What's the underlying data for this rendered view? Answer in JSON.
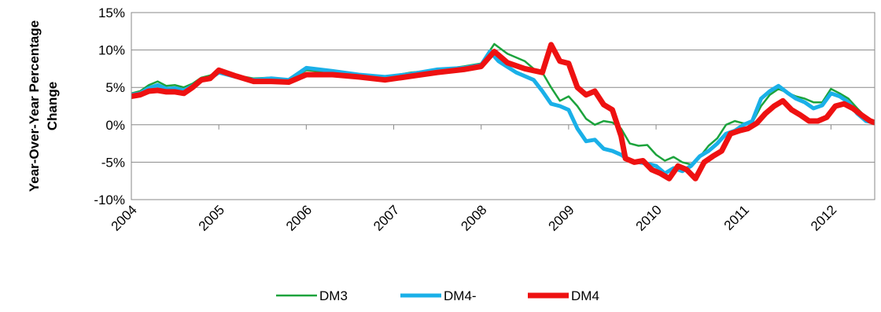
{
  "chart_data": {
    "type": "line",
    "ylabel": [
      "Year-Over-Year Percentage",
      "Change"
    ],
    "xlabel": "",
    "ylim": [
      -10,
      15
    ],
    "yticks": [
      15,
      10,
      5,
      0,
      -5,
      -10
    ],
    "ytick_labels": [
      "15%",
      "10%",
      "5%",
      "0%",
      "-5%",
      "-10%"
    ],
    "xlim": [
      2004,
      2012.5
    ],
    "xticks": [
      2004,
      2005,
      2006,
      2007,
      2008,
      2009,
      2010,
      2011,
      2012
    ],
    "xtick_labels": [
      "2004",
      "2005",
      "2006",
      "2007",
      "2008",
      "2009",
      "2010",
      "2011",
      "2012"
    ],
    "grid": "horizontal",
    "legend": "bottom",
    "series": [
      {
        "name": "DM3",
        "color": "#1ca33c",
        "points": [
          [
            2004.0,
            4.2
          ],
          [
            2004.1,
            4.5
          ],
          [
            2004.2,
            5.3
          ],
          [
            2004.3,
            5.8
          ],
          [
            2004.4,
            5.2
          ],
          [
            2004.5,
            5.3
          ],
          [
            2004.6,
            5.0
          ],
          [
            2004.7,
            5.5
          ],
          [
            2004.8,
            6.3
          ],
          [
            2004.9,
            6.6
          ],
          [
            2005.0,
            7.2
          ],
          [
            2005.2,
            6.6
          ],
          [
            2005.4,
            6.2
          ],
          [
            2005.6,
            6.3
          ],
          [
            2005.8,
            6.0
          ],
          [
            2006.0,
            7.3
          ],
          [
            2006.3,
            7.0
          ],
          [
            2006.6,
            6.6
          ],
          [
            2006.9,
            6.4
          ],
          [
            2007.2,
            7.0
          ],
          [
            2007.5,
            7.3
          ],
          [
            2007.8,
            7.8
          ],
          [
            2008.0,
            8.2
          ],
          [
            2008.15,
            10.8
          ],
          [
            2008.3,
            9.5
          ],
          [
            2008.5,
            8.5
          ],
          [
            2008.6,
            7.5
          ],
          [
            2008.7,
            7.0
          ],
          [
            2008.8,
            5.0
          ],
          [
            2008.9,
            3.2
          ],
          [
            2009.0,
            3.8
          ],
          [
            2009.1,
            2.5
          ],
          [
            2009.2,
            0.8
          ],
          [
            2009.3,
            0.0
          ],
          [
            2009.4,
            0.5
          ],
          [
            2009.5,
            0.3
          ],
          [
            2009.6,
            -0.5
          ],
          [
            2009.7,
            -2.5
          ],
          [
            2009.8,
            -2.8
          ],
          [
            2009.9,
            -2.7
          ],
          [
            2010.0,
            -4.0
          ],
          [
            2010.1,
            -4.8
          ],
          [
            2010.2,
            -4.3
          ],
          [
            2010.3,
            -5.0
          ],
          [
            2010.4,
            -5.3
          ],
          [
            2010.5,
            -4.3
          ],
          [
            2010.6,
            -2.8
          ],
          [
            2010.7,
            -1.8
          ],
          [
            2010.8,
            0.0
          ],
          [
            2010.9,
            0.5
          ],
          [
            2011.0,
            0.2
          ],
          [
            2011.1,
            0.3
          ],
          [
            2011.2,
            2.5
          ],
          [
            2011.3,
            4.0
          ],
          [
            2011.4,
            4.8
          ],
          [
            2011.5,
            4.3
          ],
          [
            2011.6,
            3.8
          ],
          [
            2011.7,
            3.5
          ],
          [
            2011.8,
            3.0
          ],
          [
            2011.9,
            3.0
          ],
          [
            2012.0,
            4.8
          ],
          [
            2012.1,
            4.2
          ],
          [
            2012.2,
            3.5
          ],
          [
            2012.3,
            2.2
          ],
          [
            2012.4,
            1.0
          ],
          [
            2012.5,
            0.5
          ]
        ]
      },
      {
        "name": "DM4-",
        "color": "#1ab0e8",
        "points": [
          [
            2004.0,
            4.0
          ],
          [
            2004.1,
            4.2
          ],
          [
            2004.2,
            4.9
          ],
          [
            2004.3,
            5.3
          ],
          [
            2004.4,
            4.8
          ],
          [
            2004.5,
            4.9
          ],
          [
            2004.6,
            4.6
          ],
          [
            2004.7,
            5.2
          ],
          [
            2004.8,
            6.0
          ],
          [
            2004.9,
            6.2
          ],
          [
            2005.0,
            7.0
          ],
          [
            2005.2,
            6.4
          ],
          [
            2005.4,
            6.0
          ],
          [
            2005.6,
            6.2
          ],
          [
            2005.8,
            6.0
          ],
          [
            2006.0,
            7.6
          ],
          [
            2006.3,
            7.2
          ],
          [
            2006.6,
            6.7
          ],
          [
            2006.9,
            6.4
          ],
          [
            2007.2,
            6.8
          ],
          [
            2007.5,
            7.4
          ],
          [
            2007.8,
            7.6
          ],
          [
            2008.0,
            8.0
          ],
          [
            2008.1,
            9.8
          ],
          [
            2008.2,
            8.5
          ],
          [
            2008.4,
            7.0
          ],
          [
            2008.6,
            6.0
          ],
          [
            2008.7,
            4.5
          ],
          [
            2008.8,
            2.8
          ],
          [
            2008.9,
            2.5
          ],
          [
            2009.0,
            2.0
          ],
          [
            2009.1,
            -0.5
          ],
          [
            2009.2,
            -2.2
          ],
          [
            2009.3,
            -2.0
          ],
          [
            2009.4,
            -3.2
          ],
          [
            2009.5,
            -3.5
          ],
          [
            2009.6,
            -4.0
          ],
          [
            2009.7,
            -4.8
          ],
          [
            2009.8,
            -5.0
          ],
          [
            2009.9,
            -5.2
          ],
          [
            2010.0,
            -5.5
          ],
          [
            2010.1,
            -6.5
          ],
          [
            2010.2,
            -5.8
          ],
          [
            2010.3,
            -6.2
          ],
          [
            2010.4,
            -5.5
          ],
          [
            2010.5,
            -4.2
          ],
          [
            2010.6,
            -3.5
          ],
          [
            2010.7,
            -2.5
          ],
          [
            2010.8,
            -1.2
          ],
          [
            2010.9,
            -0.8
          ],
          [
            2011.0,
            0.0
          ],
          [
            2011.1,
            0.5
          ],
          [
            2011.2,
            3.5
          ],
          [
            2011.3,
            4.5
          ],
          [
            2011.4,
            5.2
          ],
          [
            2011.5,
            4.3
          ],
          [
            2011.6,
            3.5
          ],
          [
            2011.7,
            3.0
          ],
          [
            2011.8,
            2.2
          ],
          [
            2011.9,
            2.6
          ],
          [
            2012.0,
            4.2
          ],
          [
            2012.1,
            3.8
          ],
          [
            2012.2,
            3.0
          ],
          [
            2012.3,
            1.5
          ],
          [
            2012.4,
            0.5
          ],
          [
            2012.5,
            0.3
          ]
        ]
      },
      {
        "name": "DM4",
        "color": "#ee1111",
        "points": [
          [
            2004.0,
            3.8
          ],
          [
            2004.1,
            4.0
          ],
          [
            2004.2,
            4.5
          ],
          [
            2004.3,
            4.6
          ],
          [
            2004.4,
            4.4
          ],
          [
            2004.5,
            4.4
          ],
          [
            2004.6,
            4.2
          ],
          [
            2004.7,
            5.0
          ],
          [
            2004.8,
            6.0
          ],
          [
            2004.9,
            6.2
          ],
          [
            2005.0,
            7.3
          ],
          [
            2005.2,
            6.5
          ],
          [
            2005.4,
            5.8
          ],
          [
            2005.6,
            5.8
          ],
          [
            2005.8,
            5.7
          ],
          [
            2006.0,
            6.7
          ],
          [
            2006.3,
            6.7
          ],
          [
            2006.6,
            6.4
          ],
          [
            2006.9,
            6.0
          ],
          [
            2007.2,
            6.5
          ],
          [
            2007.5,
            7.0
          ],
          [
            2007.8,
            7.4
          ],
          [
            2008.0,
            7.8
          ],
          [
            2008.15,
            9.8
          ],
          [
            2008.3,
            8.3
          ],
          [
            2008.5,
            7.5
          ],
          [
            2008.7,
            7.0
          ],
          [
            2008.8,
            10.7
          ],
          [
            2008.9,
            8.5
          ],
          [
            2009.0,
            8.2
          ],
          [
            2009.1,
            5.0
          ],
          [
            2009.2,
            4.0
          ],
          [
            2009.3,
            4.5
          ],
          [
            2009.4,
            2.7
          ],
          [
            2009.5,
            2.0
          ],
          [
            2009.6,
            -1.5
          ],
          [
            2009.65,
            -4.5
          ],
          [
            2009.75,
            -5.0
          ],
          [
            2009.85,
            -4.8
          ],
          [
            2009.95,
            -6.0
          ],
          [
            2010.05,
            -6.5
          ],
          [
            2010.15,
            -7.2
          ],
          [
            2010.25,
            -5.5
          ],
          [
            2010.35,
            -6.0
          ],
          [
            2010.45,
            -7.2
          ],
          [
            2010.55,
            -5.0
          ],
          [
            2010.65,
            -4.2
          ],
          [
            2010.75,
            -3.5
          ],
          [
            2010.85,
            -1.2
          ],
          [
            2010.95,
            -0.8
          ],
          [
            2011.05,
            -0.5
          ],
          [
            2011.15,
            0.2
          ],
          [
            2011.25,
            1.5
          ],
          [
            2011.35,
            2.5
          ],
          [
            2011.45,
            3.2
          ],
          [
            2011.55,
            2.0
          ],
          [
            2011.65,
            1.3
          ],
          [
            2011.75,
            0.5
          ],
          [
            2011.85,
            0.5
          ],
          [
            2011.95,
            1.0
          ],
          [
            2012.05,
            2.5
          ],
          [
            2012.15,
            2.8
          ],
          [
            2012.25,
            2.2
          ],
          [
            2012.35,
            1.3
          ],
          [
            2012.45,
            0.5
          ],
          [
            2012.5,
            0.3
          ]
        ]
      }
    ]
  }
}
